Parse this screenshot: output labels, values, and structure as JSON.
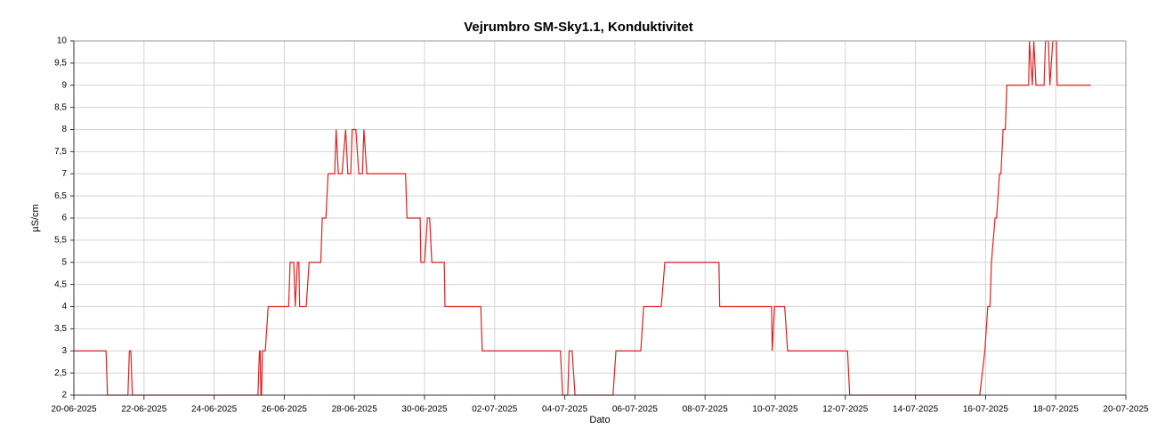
{
  "chart_data": {
    "type": "line",
    "title": "Vejrumbro SM-Sky1.1, Konduktivitet",
    "x_label": "Dato",
    "y_label": "µS/cm",
    "grid": true,
    "xlim": [
      "2025-06-20T00:00",
      "2025-07-20T00:00"
    ],
    "xticks": [
      {
        "value": "2025-06-20T00:00",
        "label": "20-06-2025"
      },
      {
        "value": "2025-06-22T00:00",
        "label": "22-06-2025"
      },
      {
        "value": "2025-06-24T00:00",
        "label": "24-06-2025"
      },
      {
        "value": "2025-06-26T00:00",
        "label": "26-06-2025"
      },
      {
        "value": "2025-06-28T00:00",
        "label": "28-06-2025"
      },
      {
        "value": "2025-06-30T00:00",
        "label": "30-06-2025"
      },
      {
        "value": "2025-07-02T00:00",
        "label": "02-07-2025"
      },
      {
        "value": "2025-07-04T00:00",
        "label": "04-07-2025"
      },
      {
        "value": "2025-07-06T00:00",
        "label": "06-07-2025"
      },
      {
        "value": "2025-07-08T00:00",
        "label": "08-07-2025"
      },
      {
        "value": "2025-07-10T00:00",
        "label": "10-07-2025"
      },
      {
        "value": "2025-07-12T00:00",
        "label": "12-07-2025"
      },
      {
        "value": "2025-07-14T00:00",
        "label": "14-07-2025"
      },
      {
        "value": "2025-07-16T00:00",
        "label": "16-07-2025"
      },
      {
        "value": "2025-07-18T00:00",
        "label": "18-07-2025"
      },
      {
        "value": "2025-07-20T00:00",
        "label": "20-07-2025"
      }
    ],
    "ylim": [
      2,
      10
    ],
    "yticks": [
      2,
      {
        "value": 2.5,
        "label": "2,5"
      },
      3,
      {
        "value": 3.5,
        "label": "3,5"
      },
      4,
      {
        "value": 4.5,
        "label": "4,5"
      },
      5,
      {
        "value": 5.5,
        "label": "5,5"
      },
      6,
      {
        "value": 6.5,
        "label": "6,5"
      },
      7,
      {
        "value": 7.5,
        "label": "7,5"
      },
      8,
      {
        "value": 8.5,
        "label": "8,5"
      },
      9,
      {
        "value": 9.5,
        "label": "9,5"
      },
      10
    ],
    "x": [
      "2025-06-20T00:00",
      "2025-06-20T22:00",
      "2025-06-20T23:00",
      "2025-06-21T13:00",
      "2025-06-21T14:00",
      "2025-06-21T15:00",
      "2025-06-21T16:00",
      "2025-06-25T06:00",
      "2025-06-25T07:00",
      "2025-06-25T07:30",
      "2025-06-25T08:00",
      "2025-06-25T08:30",
      "2025-06-25T09:00",
      "2025-06-25T11:00",
      "2025-06-25T13:00",
      "2025-06-26T03:00",
      "2025-06-26T04:00",
      "2025-06-26T06:30",
      "2025-06-26T07:30",
      "2025-06-26T09:00",
      "2025-06-26T10:00",
      "2025-06-26T10:30",
      "2025-06-26T15:00",
      "2025-06-26T17:00",
      "2025-06-27T01:00",
      "2025-06-27T02:00",
      "2025-06-27T04:30",
      "2025-06-27T06:00",
      "2025-06-27T10:30",
      "2025-06-27T11:30",
      "2025-06-27T13:00",
      "2025-06-27T15:30",
      "2025-06-27T18:00",
      "2025-06-27T19:30",
      "2025-06-27T21:30",
      "2025-06-27T22:30",
      "2025-06-28T01:00",
      "2025-06-28T03:00",
      "2025-06-28T05:30",
      "2025-06-28T06:30",
      "2025-06-28T08:30",
      "2025-06-29T11:00",
      "2025-06-29T12:00",
      "2025-06-29T21:00",
      "2025-06-29T21:30",
      "2025-06-30T00:00",
      "2025-06-30T02:00",
      "2025-06-30T03:30",
      "2025-06-30T05:00",
      "2025-06-30T13:30",
      "2025-06-30T14:00",
      "2025-07-01T14:30",
      "2025-07-01T15:30",
      "2025-07-03T21:00",
      "2025-07-03T22:30",
      "2025-07-04T02:00",
      "2025-07-04T03:00",
      "2025-07-04T05:00",
      "2025-07-04T07:00",
      "2025-07-05T09:00",
      "2025-07-05T11:00",
      "2025-07-06T04:00",
      "2025-07-06T06:00",
      "2025-07-06T18:00",
      "2025-07-06T20:30",
      "2025-07-08T09:30",
      "2025-07-08T10:00",
      "2025-07-09T21:30",
      "2025-07-09T22:00",
      "2025-07-09T23:30",
      "2025-07-10T06:30",
      "2025-07-10T08:30",
      "2025-07-12T01:30",
      "2025-07-12T03:00",
      "2025-07-15T20:00",
      "2025-07-15T23:30",
      "2025-07-16T01:30",
      "2025-07-16T03:00",
      "2025-07-16T04:00",
      "2025-07-16T06:30",
      "2025-07-16T07:30",
      "2025-07-16T09:30",
      "2025-07-16T10:30",
      "2025-07-16T12:00",
      "2025-07-16T13:30",
      "2025-07-16T14:30",
      "2025-07-17T05:30",
      "2025-07-17T06:00",
      "2025-07-17T08:00",
      "2025-07-17T09:00",
      "2025-07-17T10:30",
      "2025-07-17T16:00",
      "2025-07-17T17:00",
      "2025-07-17T19:00",
      "2025-07-17T20:00",
      "2025-07-17T22:00",
      "2025-07-18T00:30",
      "2025-07-18T01:00",
      "2025-07-19T00:00"
    ],
    "series": [
      {
        "color": "#e02020",
        "values": [
          3,
          3,
          2,
          2,
          3,
          3,
          2,
          2,
          3,
          3,
          2,
          2,
          3,
          3,
          4,
          4,
          5,
          5,
          4,
          5,
          5,
          4,
          4,
          5,
          5,
          6,
          6,
          7,
          7,
          8,
          7,
          7,
          8,
          7,
          7,
          8,
          8,
          7,
          7,
          8,
          7,
          7,
          6,
          6,
          5,
          5,
          6,
          6,
          5,
          5,
          4,
          4,
          3,
          3,
          2,
          2,
          3,
          3,
          2,
          2,
          3,
          3,
          4,
          4,
          5,
          5,
          4,
          4,
          3,
          4,
          4,
          3,
          3,
          2,
          2,
          3,
          4,
          4,
          5,
          6,
          6,
          7,
          7,
          8,
          8,
          9,
          9,
          10,
          9,
          10,
          9,
          9,
          10,
          10,
          9,
          10,
          10,
          9,
          9
        ]
      }
    ]
  }
}
